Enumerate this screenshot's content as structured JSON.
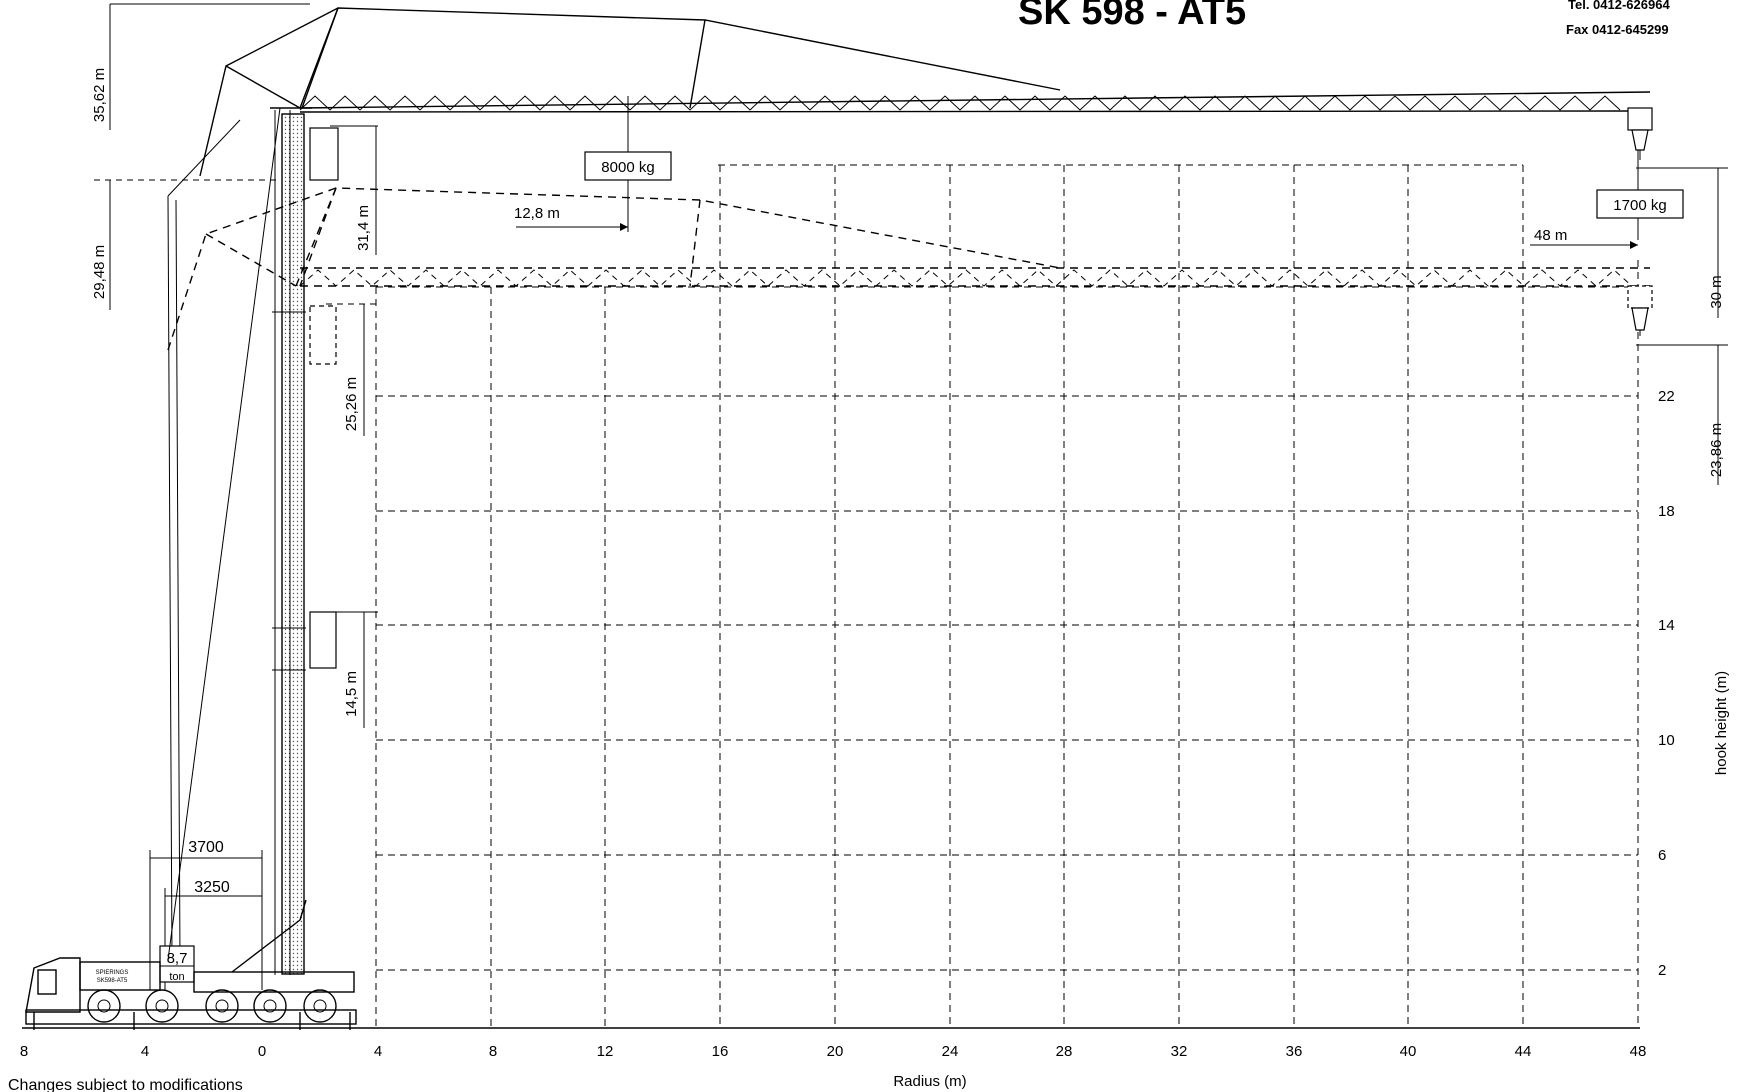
{
  "title": "SK 598 - AT5",
  "contact": {
    "tel": "Tel.  0412-626964",
    "fax": "Fax  0412-645299"
  },
  "footer_note": "Changes subject to modifications",
  "axes": {
    "x_label": "Radius (m)",
    "x_ticks": [
      "8",
      "4",
      "0",
      "4",
      "8",
      "12",
      "16",
      "20",
      "24",
      "28",
      "32",
      "36",
      "40",
      "44",
      "48"
    ],
    "y_label": "hook height (m)",
    "y_ticks": [
      "22",
      "18",
      "14",
      "10",
      "6",
      "2"
    ]
  },
  "dimensions": {
    "top_height": "35,62 m",
    "luffed_height": "29,48 m",
    "mid_height": "31,4 m",
    "low_height": "25,26 m",
    "base_height": "14,5 m",
    "right_hook_height": "30 m",
    "right_low_hook_height": "23,86 m",
    "outrigger_outer": "3700",
    "outrigger_inner": "3250",
    "radius_12_8": "12,8 m",
    "radius_48": "48 m"
  },
  "loads": {
    "max_load": "8000 kg",
    "tip_load": "1700 kg",
    "counterweight_value": "8,7",
    "counterweight_unit": "ton"
  },
  "truck_label": {
    "brand": "SPIERINGS",
    "model": "SK598-AT5"
  }
}
